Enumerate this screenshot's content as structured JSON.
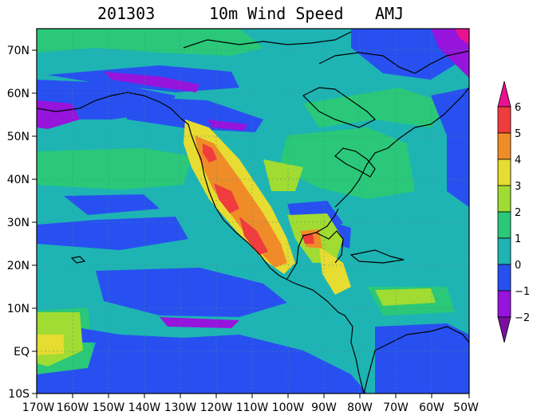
{
  "title": {
    "date": "201303",
    "variable": "10m Wind Speed",
    "season": "AMJ"
  },
  "map": {
    "lon_range": [
      -170,
      -50
    ],
    "lat_range": [
      -10,
      75
    ],
    "lat_ticks": [
      "70N",
      "60N",
      "50N",
      "40N",
      "30N",
      "20N",
      "10N",
      "EQ",
      "10S"
    ],
    "lon_ticks": [
      "170W",
      "160W",
      "150W",
      "140W",
      "130W",
      "120W",
      "110W",
      "100W",
      "90W",
      "80W",
      "70W",
      "60W",
      "50W"
    ],
    "gridlines": true
  },
  "colorbar": {
    "labels": [
      "6",
      "5",
      "4",
      "3",
      "2",
      "1",
      "0",
      "−1",
      "−2"
    ],
    "colors": [
      "#e8128f",
      "#f03c3c",
      "#f08c28",
      "#e6dc32",
      "#a0dc32",
      "#2ac878",
      "#1eb4b4",
      "#2850f0",
      "#9614dc",
      "#7a0fa0"
    ]
  }
}
